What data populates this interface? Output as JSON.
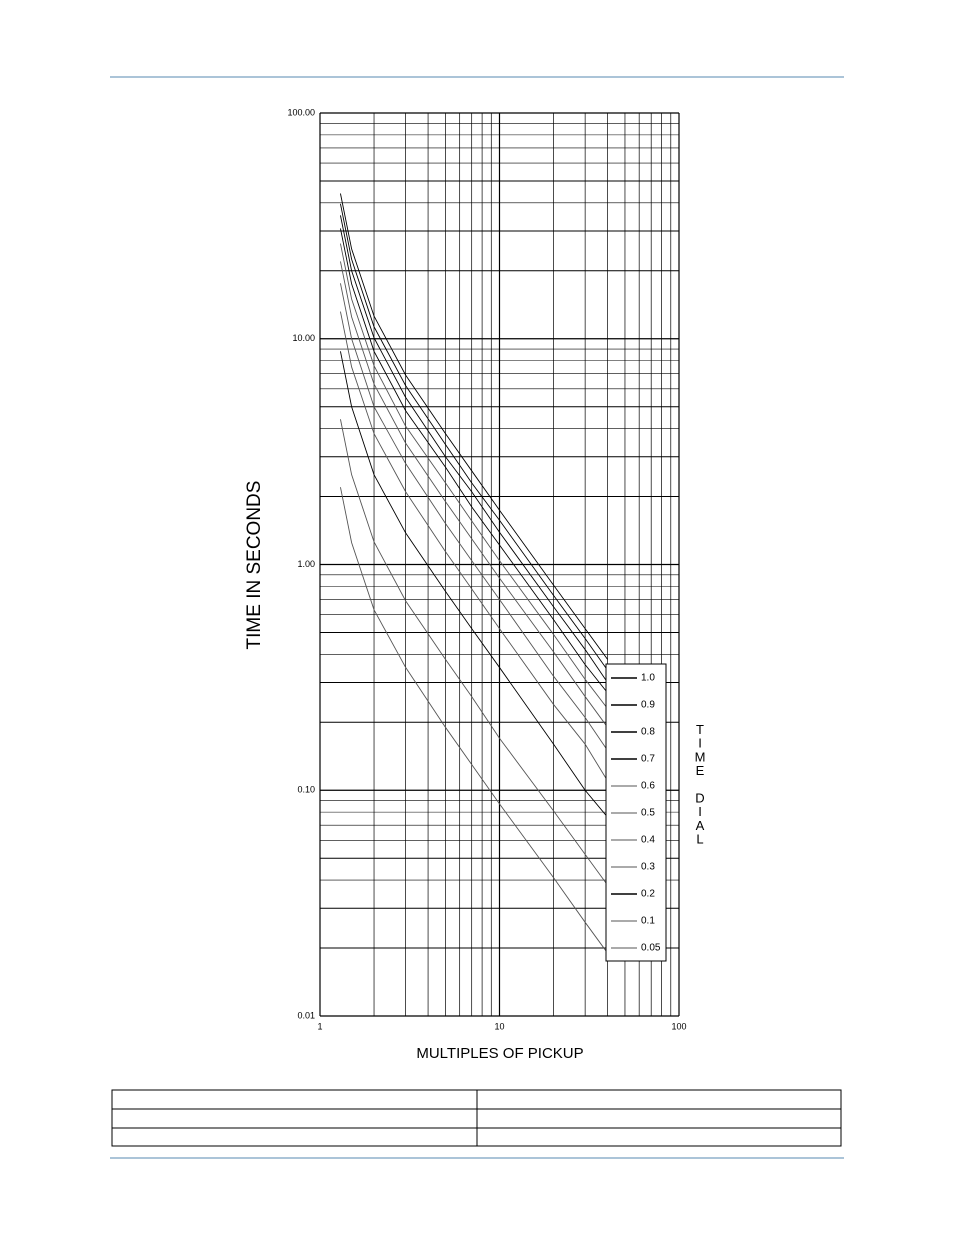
{
  "chart_data": {
    "type": "line",
    "y_label": "TIME IN SECONDS",
    "x_label": "MULTIPLES OF PICKUP",
    "legend_title": "TIME DIAL",
    "x_scale": "log",
    "y_scale": "log",
    "grid": true,
    "legend": "lower right",
    "xlim": [
      1,
      100
    ],
    "xticks": [
      1,
      10,
      100
    ],
    "ylim": [
      0.01,
      100
    ],
    "yticks": [
      0.01,
      {
        "value": 0.1,
        "label": "0.10"
      },
      {
        "value": 1,
        "label": "1.00"
      },
      {
        "value": 10,
        "label": "10.00"
      },
      {
        "value": 100,
        "label": "100.00"
      }
    ],
    "x": [
      1.3,
      1.5,
      2,
      3,
      5,
      7,
      10,
      20,
      30,
      40
    ],
    "series": [
      {
        "name": "1.0",
        "color": "#000000",
        "values": [
          44,
          25,
          12.6,
          6.9,
          3.8,
          2.6,
          1.74,
          0.81,
          0.52,
          0.38
        ]
      },
      {
        "name": "0.9",
        "color": "#000000",
        "values": [
          39.6,
          22.5,
          11.3,
          6.2,
          3.4,
          2.3,
          1.57,
          0.73,
          0.47,
          0.34
        ]
      },
      {
        "name": "0.8",
        "color": "#000000",
        "values": [
          35.2,
          20,
          10.1,
          5.5,
          3.0,
          2.1,
          1.39,
          0.65,
          0.42,
          0.3
        ]
      },
      {
        "name": "0.7",
        "color": "#000000",
        "values": [
          30.8,
          17.5,
          8.8,
          4.8,
          2.7,
          1.8,
          1.22,
          0.57,
          0.36,
          0.27
        ]
      },
      {
        "name": "0.6",
        "color": "#555555",
        "values": [
          26.4,
          15,
          7.6,
          4.1,
          2.3,
          1.56,
          1.04,
          0.49,
          0.31,
          0.23
        ]
      },
      {
        "name": "0.5",
        "color": "#555555",
        "values": [
          22,
          12.5,
          6.3,
          3.45,
          1.9,
          1.3,
          0.87,
          0.41,
          0.26,
          0.19
        ]
      },
      {
        "name": "0.4",
        "color": "#555555",
        "values": [
          17.6,
          10,
          5.0,
          2.8,
          1.52,
          1.04,
          0.7,
          0.32,
          0.21,
          0.15
        ]
      },
      {
        "name": "0.3",
        "color": "#555555",
        "values": [
          13.2,
          7.5,
          3.8,
          2.1,
          1.14,
          0.78,
          0.52,
          0.24,
          0.16,
          0.11
        ]
      },
      {
        "name": "0.2",
        "color": "#000000",
        "values": [
          8.8,
          5,
          2.5,
          1.38,
          0.76,
          0.52,
          0.35,
          0.16,
          0.1,
          0.076
        ]
      },
      {
        "name": "0.1",
        "color": "#555555",
        "values": [
          4.4,
          2.5,
          1.26,
          0.69,
          0.38,
          0.26,
          0.17,
          0.081,
          0.052,
          0.038
        ]
      },
      {
        "name": "0.05",
        "color": "#555555",
        "values": [
          2.2,
          1.25,
          0.63,
          0.35,
          0.19,
          0.13,
          0.087,
          0.041,
          0.026,
          0.019
        ]
      }
    ]
  }
}
